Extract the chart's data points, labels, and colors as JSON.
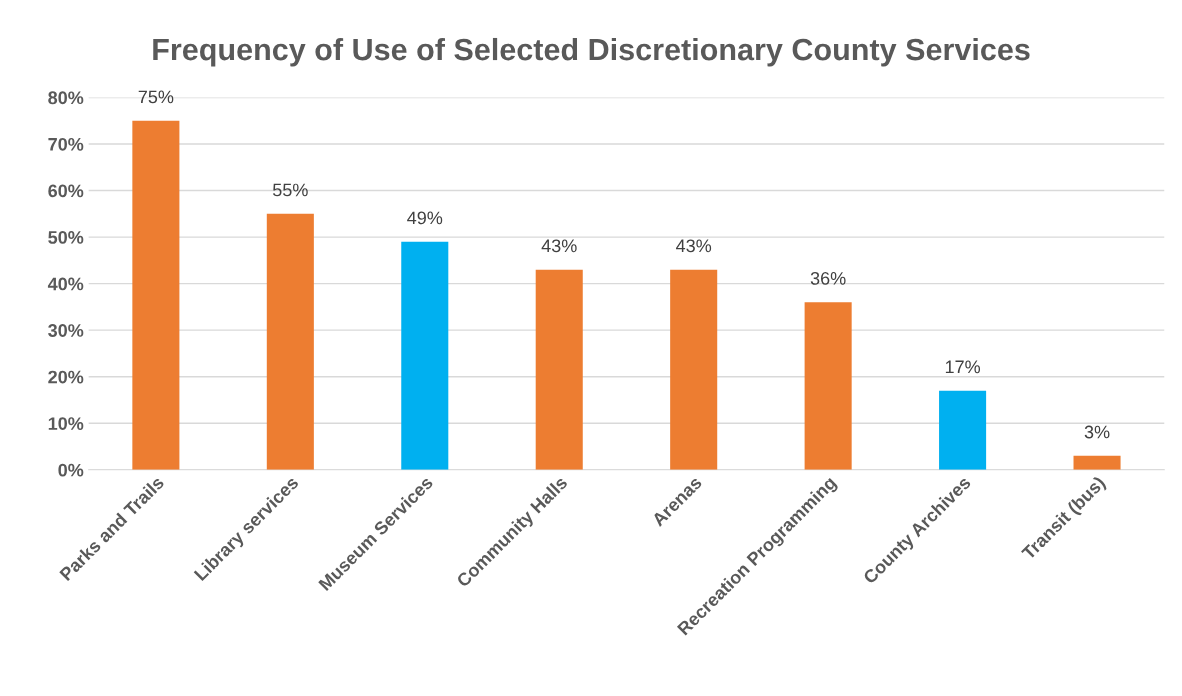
{
  "chart_data": {
    "type": "bar",
    "title": "Frequency of Use of Selected Discretionary County Services",
    "categories": [
      "Parks and Trails",
      "Library services",
      "Museum Services",
      "Community Halls",
      "Arenas",
      "Recreation Programming",
      "County Archives",
      "Transit (bus)"
    ],
    "values": [
      75,
      55,
      49,
      43,
      43,
      36,
      17,
      3
    ],
    "value_labels": [
      "75%",
      "55%",
      "49%",
      "43%",
      "43%",
      "36%",
      "17%",
      "3%"
    ],
    "colors": [
      "#ed7d31",
      "#ed7d31",
      "#00b0f0",
      "#ed7d31",
      "#ed7d31",
      "#ed7d31",
      "#00b0f0",
      "#ed7d31"
    ],
    "ylim": [
      0,
      80
    ],
    "yticks": [
      {
        "value": 0,
        "label": "0%"
      },
      {
        "value": 10,
        "label": "10%"
      },
      {
        "value": 20,
        "label": "20%"
      },
      {
        "value": 30,
        "label": "30%"
      },
      {
        "value": 40,
        "label": "40%"
      },
      {
        "value": 50,
        "label": "50%"
      },
      {
        "value": 60,
        "label": "60%"
      },
      {
        "value": 70,
        "label": "70%"
      },
      {
        "value": 80,
        "label": "80%"
      }
    ],
    "grid": "y",
    "legend": false
  }
}
